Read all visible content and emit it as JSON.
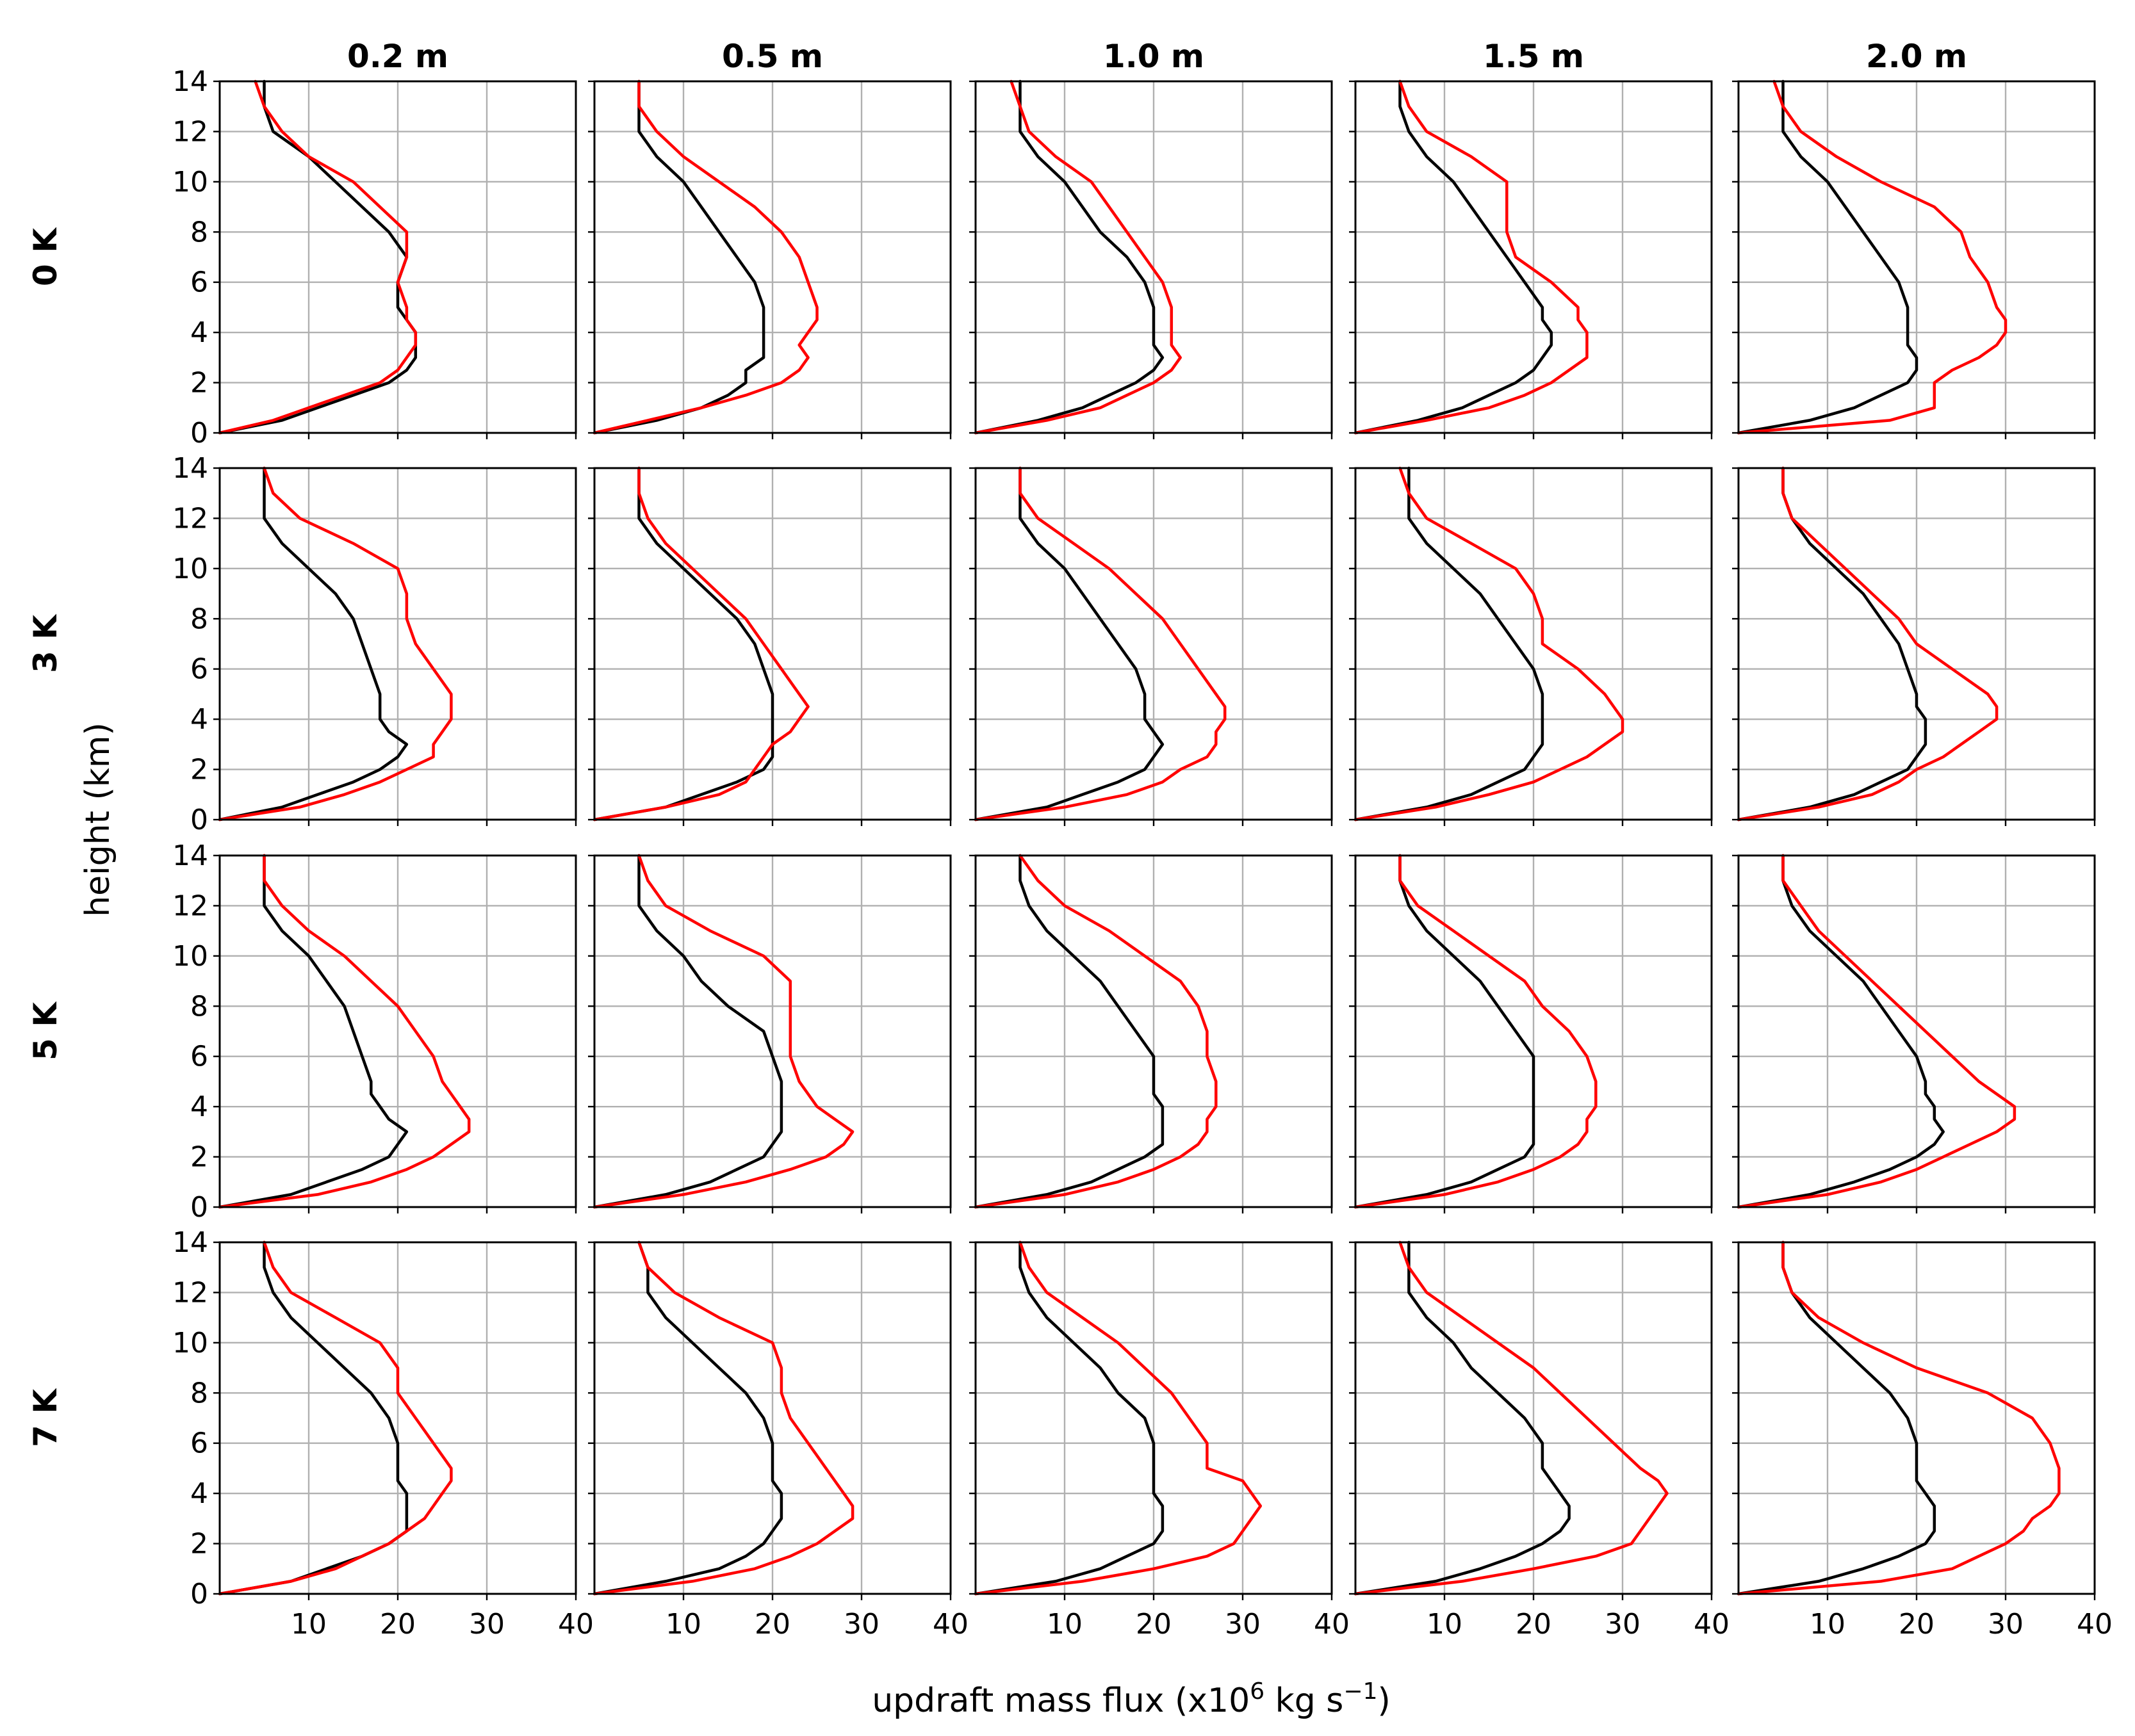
{
  "chart_data": {
    "type": "line",
    "col_labels": [
      "0.2 m",
      "0.5 m",
      "1.0 m",
      "1.5 m",
      "2.0 m"
    ],
    "row_labels": [
      "0 K",
      "3 K",
      "5 K",
      "7 K"
    ],
    "xlabel_main": "updraft mass flux (x10",
    "xlabel_exp": "6",
    "xlabel_rest": " kg s",
    "xlabel_exp2": "−1",
    "xlabel_end": ")",
    "ylabel": "height (km)",
    "xlim": [
      0,
      40
    ],
    "ylim": [
      0,
      14
    ],
    "xticks": [
      "10",
      "20",
      "30",
      "40"
    ],
    "yticks": [
      "0",
      "2",
      "4",
      "6",
      "8",
      "10",
      "12",
      "14"
    ],
    "series_colors": {
      "black": "#000000",
      "red": "#ff0000"
    },
    "heights": [
      0,
      0.5,
      1,
      1.5,
      2,
      2.5,
      3,
      3.5,
      4,
      4.5,
      5,
      6,
      7,
      8,
      9,
      10,
      11,
      12,
      13,
      14
    ],
    "panels": [
      [
        {
          "black": [
            0,
            7,
            11,
            15,
            19,
            21,
            22,
            22,
            22,
            21,
            20,
            20,
            21,
            19,
            16,
            13,
            10,
            6,
            5,
            5
          ],
          "red": [
            0,
            6,
            10,
            14,
            18,
            20,
            21,
            22,
            22,
            21,
            21,
            20,
            21,
            21,
            18,
            15,
            10,
            7,
            5,
            4
          ]
        },
        {
          "black": [
            0,
            7,
            12,
            15,
            17,
            17,
            19,
            19,
            19,
            19,
            19,
            18,
            16,
            14,
            12,
            10,
            7,
            5,
            5,
            5
          ],
          "red": [
            0,
            6,
            12,
            17,
            21,
            23,
            24,
            23,
            24,
            25,
            25,
            24,
            23,
            21,
            18,
            14,
            10,
            7,
            5,
            5
          ]
        },
        {
          "black": [
            0,
            7,
            12,
            15,
            18,
            20,
            21,
            20,
            20,
            20,
            20,
            19,
            17,
            14,
            12,
            10,
            7,
            5,
            5,
            5
          ],
          "red": [
            0,
            8,
            14,
            17,
            20,
            22,
            23,
            22,
            22,
            22,
            22,
            21,
            19,
            17,
            15,
            13,
            9,
            6,
            5,
            4
          ]
        },
        {
          "black": [
            0,
            7,
            12,
            15,
            18,
            20,
            21,
            22,
            22,
            21,
            21,
            19,
            17,
            15,
            13,
            11,
            8,
            6,
            5,
            5
          ],
          "red": [
            0,
            8,
            15,
            19,
            22,
            24,
            26,
            26,
            26,
            25,
            25,
            22,
            18,
            17,
            17,
            17,
            13,
            8,
            6,
            5
          ]
        },
        {
          "black": [
            0,
            8,
            13,
            16,
            19,
            20,
            20,
            19,
            19,
            19,
            19,
            18,
            16,
            14,
            12,
            10,
            7,
            5,
            5,
            5
          ],
          "red": [
            0,
            17,
            22,
            22,
            22,
            24,
            27,
            29,
            30,
            30,
            29,
            28,
            26,
            25,
            22,
            16,
            11,
            7,
            5,
            4
          ]
        }
      ],
      [
        {
          "black": [
            0,
            7,
            11,
            15,
            18,
            20,
            21,
            19,
            18,
            18,
            18,
            17,
            16,
            15,
            13,
            10,
            7,
            5,
            5,
            5
          ],
          "red": [
            0,
            9,
            14,
            18,
            21,
            24,
            24,
            25,
            26,
            26,
            26,
            24,
            22,
            21,
            21,
            20,
            15,
            9,
            6,
            5
          ]
        },
        {
          "black": [
            0,
            8,
            12,
            16,
            19,
            20,
            20,
            20,
            20,
            20,
            20,
            19,
            18,
            16,
            13,
            10,
            7,
            5,
            5,
            5
          ],
          "red": [
            0,
            8,
            14,
            17,
            18,
            19,
            20,
            22,
            23,
            24,
            23,
            21,
            19,
            17,
            14,
            11,
            8,
            6,
            5,
            5
          ]
        },
        {
          "black": [
            0,
            8,
            12,
            16,
            19,
            20,
            21,
            20,
            19,
            19,
            19,
            18,
            16,
            14,
            12,
            10,
            7,
            5,
            5,
            5
          ],
          "red": [
            0,
            10,
            17,
            21,
            23,
            26,
            27,
            27,
            28,
            28,
            27,
            25,
            23,
            21,
            18,
            15,
            11,
            7,
            5,
            5
          ]
        },
        {
          "black": [
            0,
            8,
            13,
            16,
            19,
            20,
            21,
            21,
            21,
            21,
            21,
            20,
            18,
            16,
            14,
            11,
            8,
            6,
            6,
            6
          ],
          "red": [
            0,
            9,
            15,
            20,
            23,
            26,
            28,
            30,
            30,
            29,
            28,
            25,
            21,
            21,
            20,
            18,
            13,
            8,
            6,
            5
          ]
        },
        {
          "black": [
            0,
            8,
            13,
            16,
            19,
            20,
            21,
            21,
            21,
            20,
            20,
            19,
            18,
            16,
            14,
            11,
            8,
            6,
            5,
            5
          ],
          "red": [
            0,
            9,
            15,
            18,
            20,
            23,
            25,
            27,
            29,
            29,
            28,
            24,
            20,
            18,
            15,
            12,
            9,
            6,
            5,
            5
          ]
        }
      ],
      [
        {
          "black": [
            0,
            8,
            12,
            16,
            19,
            20,
            21,
            19,
            18,
            17,
            17,
            16,
            15,
            14,
            12,
            10,
            7,
            5,
            5,
            5
          ],
          "red": [
            0,
            11,
            17,
            21,
            24,
            26,
            28,
            28,
            27,
            26,
            25,
            24,
            22,
            20,
            17,
            14,
            10,
            7,
            5,
            5
          ]
        },
        {
          "black": [
            0,
            8,
            13,
            16,
            19,
            20,
            21,
            21,
            21,
            21,
            21,
            20,
            19,
            15,
            12,
            10,
            7,
            5,
            5,
            5
          ],
          "red": [
            0,
            10,
            17,
            22,
            26,
            28,
            29,
            27,
            25,
            24,
            23,
            22,
            22,
            22,
            22,
            19,
            13,
            8,
            6,
            5
          ]
        },
        {
          "black": [
            0,
            8,
            13,
            16,
            19,
            21,
            21,
            21,
            21,
            20,
            20,
            20,
            18,
            16,
            14,
            11,
            8,
            6,
            5,
            5
          ],
          "red": [
            0,
            10,
            16,
            20,
            23,
            25,
            26,
            26,
            27,
            27,
            27,
            26,
            26,
            25,
            23,
            19,
            15,
            10,
            7,
            5
          ]
        },
        {
          "black": [
            0,
            8,
            13,
            16,
            19,
            20,
            20,
            20,
            20,
            20,
            20,
            20,
            18,
            16,
            14,
            11,
            8,
            6,
            5,
            5
          ],
          "red": [
            0,
            10,
            16,
            20,
            23,
            25,
            26,
            26,
            27,
            27,
            27,
            26,
            24,
            21,
            19,
            15,
            11,
            7,
            5,
            5
          ]
        },
        {
          "black": [
            0,
            8,
            13,
            17,
            20,
            22,
            23,
            22,
            22,
            21,
            21,
            20,
            18,
            16,
            14,
            11,
            8,
            6,
            5,
            5
          ],
          "red": [
            0,
            10,
            16,
            20,
            23,
            26,
            29,
            31,
            31,
            29,
            27,
            24,
            21,
            18,
            15,
            12,
            9,
            7,
            5,
            5
          ]
        }
      ],
      [
        {
          "black": [
            0,
            8,
            12,
            16,
            19,
            21,
            21,
            21,
            21,
            20,
            20,
            20,
            19,
            17,
            14,
            11,
            8,
            6,
            5,
            5
          ],
          "red": [
            0,
            8,
            13,
            16,
            19,
            21,
            23,
            24,
            25,
            26,
            26,
            24,
            22,
            20,
            20,
            18,
            13,
            8,
            6,
            5
          ]
        },
        {
          "black": [
            0,
            8,
            14,
            17,
            19,
            20,
            21,
            21,
            21,
            20,
            20,
            20,
            19,
            17,
            14,
            11,
            8,
            6,
            6,
            5
          ],
          "red": [
            0,
            11,
            18,
            22,
            25,
            27,
            29,
            29,
            28,
            27,
            26,
            24,
            22,
            21,
            21,
            20,
            14,
            9,
            6,
            5
          ]
        },
        {
          "black": [
            0,
            9,
            14,
            17,
            20,
            21,
            21,
            21,
            20,
            20,
            20,
            20,
            19,
            16,
            14,
            11,
            8,
            6,
            5,
            5
          ],
          "red": [
            0,
            12,
            20,
            26,
            29,
            30,
            31,
            32,
            31,
            30,
            26,
            26,
            24,
            22,
            19,
            16,
            12,
            8,
            6,
            5
          ]
        },
        {
          "black": [
            0,
            9,
            14,
            18,
            21,
            23,
            24,
            24,
            23,
            22,
            21,
            21,
            19,
            16,
            13,
            11,
            8,
            6,
            6,
            6
          ],
          "red": [
            0,
            12,
            20,
            27,
            31,
            32,
            33,
            34,
            35,
            34,
            32,
            29,
            26,
            23,
            20,
            16,
            12,
            8,
            6,
            5
          ]
        },
        {
          "black": [
            0,
            9,
            14,
            18,
            21,
            22,
            22,
            22,
            21,
            20,
            20,
            20,
            19,
            17,
            14,
            11,
            8,
            6,
            5,
            5
          ],
          "red": [
            0,
            16,
            24,
            27,
            30,
            32,
            33,
            35,
            36,
            36,
            36,
            35,
            33,
            28,
            20,
            14,
            9,
            6,
            5,
            5
          ]
        }
      ]
    ]
  }
}
